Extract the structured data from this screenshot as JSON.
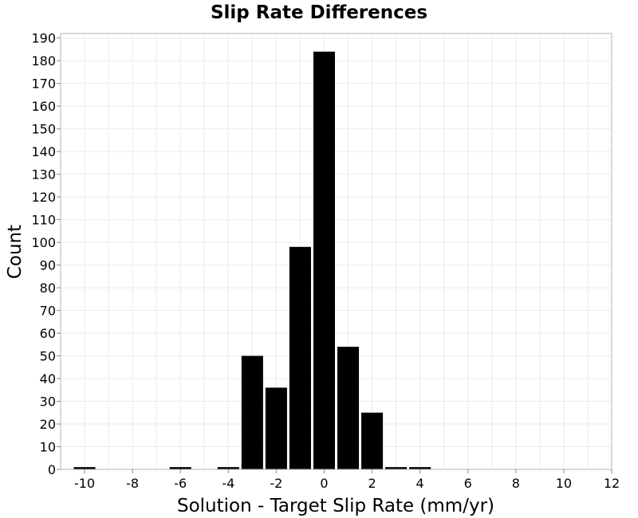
{
  "chart_data": {
    "type": "bar",
    "title": "Slip Rate Differences",
    "xlabel": "Solution - Target Slip Rate (mm/yr)",
    "ylabel": "Count",
    "xlim": [
      -11,
      12
    ],
    "ylim": [
      0,
      192
    ],
    "xticks": [
      -10,
      -8,
      -6,
      -4,
      -2,
      0,
      2,
      4,
      6,
      8,
      10,
      12
    ],
    "yticks": [
      0,
      10,
      20,
      30,
      40,
      50,
      60,
      70,
      80,
      90,
      100,
      110,
      120,
      130,
      140,
      150,
      160,
      170,
      180,
      190
    ],
    "bin_width": 1,
    "bins": [
      {
        "x": -10,
        "count": 1
      },
      {
        "x": -6,
        "count": 1
      },
      {
        "x": -4,
        "count": 1
      },
      {
        "x": -3,
        "count": 50
      },
      {
        "x": -2,
        "count": 36
      },
      {
        "x": -1,
        "count": 98
      },
      {
        "x": 0,
        "count": 184
      },
      {
        "x": 1,
        "count": 54
      },
      {
        "x": 2,
        "count": 25
      },
      {
        "x": 3,
        "count": 1
      },
      {
        "x": 4,
        "count": 1
      }
    ],
    "bar_color": "#000000",
    "grid": true,
    "legend": "none"
  }
}
